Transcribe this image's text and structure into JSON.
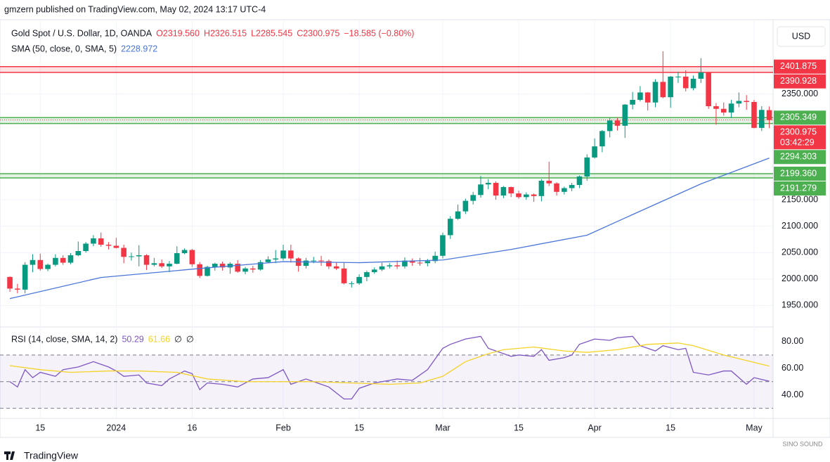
{
  "header": {
    "published": "gmzern published on TradingView.com, May 02, 2024 13:17 UTC-4",
    "symbol": "Gold Spot / U.S. Dollar, 1D, OANDA",
    "ohlc_labels": [
      "O2319.560",
      "H2326.515",
      "L2285.545",
      "C2300.975"
    ],
    "change": "−18.585 (−0.80%)",
    "currency": "USD",
    "countdown": "03:42:29",
    "footer": "TradingView",
    "watermark": "SINO SOUND"
  },
  "chart_data": [
    {
      "type": "candlestick",
      "up_color": "#089981",
      "down_color": "#f23645",
      "grid": true,
      "xlim": [
        -1.3,
        100.5
      ],
      "ylim": [
        1912,
        2488
      ],
      "xticks": [
        {
          "value": 4,
          "label": "15"
        },
        {
          "value": 14,
          "label": "2024"
        },
        {
          "value": 24,
          "label": "16"
        },
        {
          "value": 36,
          "label": "Feb"
        },
        {
          "value": 46,
          "label": "15"
        },
        {
          "value": 57,
          "label": "Mar"
        },
        {
          "value": 67,
          "label": "15"
        },
        {
          "value": 77,
          "label": "Apr"
        },
        {
          "value": 87,
          "label": "15"
        },
        {
          "value": 98,
          "label": "May"
        }
      ],
      "yticks": [
        {
          "value": 1950,
          "label": "1950.000"
        },
        {
          "value": 2000,
          "label": "2000.000"
        },
        {
          "value": 2050,
          "label": "2050.000"
        },
        {
          "value": 2100,
          "label": "2100.000"
        },
        {
          "value": 2150,
          "label": "2150.000"
        },
        {
          "value": 2350,
          "label": "2350.000"
        }
      ],
      "open": [
        2004,
        1982,
        1980,
        2027,
        2036,
        2019,
        2027,
        2040,
        2031,
        2045,
        2053,
        2067,
        2077,
        2065,
        2063,
        2059,
        2042,
        2043,
        2045,
        2027,
        2030,
        2024,
        2029,
        2049,
        2055,
        2028,
        2006,
        2023,
        2029,
        2022,
        2029,
        2014,
        2020,
        2018,
        2032,
        2037,
        2039,
        2054,
        2039,
        2025,
        2035,
        2035,
        2034,
        2024,
        2020,
        1992,
        1992,
        2004,
        2013,
        2018,
        2024,
        2026,
        2024,
        2035,
        2031,
        2030,
        2034,
        2044,
        2083,
        2114,
        2128,
        2148,
        2159,
        2179,
        2182,
        2158,
        2174,
        2162,
        2155,
        2160,
        2157,
        2186,
        2181,
        2165,
        2172,
        2178,
        2194,
        2230,
        2251,
        2280,
        2300,
        2290,
        2330,
        2339,
        2353,
        2334,
        2373,
        2344,
        2383,
        2383,
        2361,
        2379,
        2391,
        2327,
        2322,
        2315,
        2332,
        2337,
        2335,
        2286,
        2319.56
      ],
      "high": [
        2005,
        1991,
        2032,
        2047,
        2048,
        2029,
        2047,
        2045,
        2049,
        2071,
        2070,
        2083,
        2088,
        2070,
        2078,
        2065,
        2050,
        2064,
        2047,
        2040,
        2037,
        2034,
        2062,
        2058,
        2057,
        2032,
        2025,
        2031,
        2033,
        2032,
        2036,
        2023,
        2025,
        2036,
        2043,
        2055,
        2065,
        2065,
        2041,
        2040,
        2042,
        2044,
        2037,
        2032,
        2031,
        1996,
        2009,
        2016,
        2022,
        2031,
        2030,
        2035,
        2041,
        2039,
        2040,
        2038,
        2052,
        2088,
        2119,
        2141,
        2152,
        2165,
        2195,
        2189,
        2185,
        2176,
        2175,
        2167,
        2164,
        2162,
        2189,
        2222,
        2183,
        2175,
        2182,
        2196,
        2236,
        2266,
        2282,
        2305,
        2305,
        2331,
        2354,
        2365,
        2354,
        2378,
        2431,
        2384,
        2392,
        2395,
        2385,
        2418,
        2392,
        2333,
        2334,
        2339,
        2353,
        2348,
        2339,
        2327,
        2326.515
      ],
      "low": [
        1976,
        1973,
        1973,
        2013,
        2016,
        2015,
        2024,
        2027,
        2028,
        2043,
        2050,
        2062,
        2061,
        2056,
        2058,
        2030,
        2035,
        2024,
        2017,
        2024,
        2021,
        2013,
        2028,
        2047,
        2023,
        2002,
        2005,
        2016,
        2016,
        2010,
        2012,
        2009,
        2012,
        2016,
        2030,
        2030,
        2035,
        2031,
        2014,
        2020,
        2030,
        2025,
        2019,
        2017,
        1990,
        1984,
        1989,
        1996,
        2010,
        2015,
        2020,
        2019,
        2020,
        2025,
        2025,
        2024,
        2030,
        2039,
        2076,
        2112,
        2123,
        2141,
        2154,
        2170,
        2150,
        2153,
        2155,
        2152,
        2150,
        2146,
        2147,
        2176,
        2158,
        2160,
        2166,
        2172,
        2186,
        2228,
        2240,
        2268,
        2281,
        2267,
        2321,
        2336,
        2319,
        2325,
        2342,
        2324,
        2371,
        2355,
        2357,
        2371,
        2322,
        2292,
        2309,
        2305,
        2325,
        2320,
        2285,
        2280,
        2285.545
      ],
      "close": [
        1982,
        1980,
        2027,
        2036,
        2019,
        2027,
        2040,
        2031,
        2045,
        2053,
        2067,
        2077,
        2065,
        2063,
        2059,
        2042,
        2043,
        2045,
        2027,
        2030,
        2024,
        2029,
        2049,
        2055,
        2028,
        2006,
        2023,
        2029,
        2022,
        2029,
        2014,
        2020,
        2018,
        2032,
        2037,
        2039,
        2054,
        2039,
        2025,
        2035,
        2035,
        2034,
        2024,
        2020,
        1992,
        1992,
        2004,
        2013,
        2018,
        2024,
        2026,
        2024,
        2035,
        2031,
        2030,
        2034,
        2044,
        2083,
        2114,
        2128,
        2148,
        2159,
        2179,
        2182,
        2158,
        2174,
        2162,
        2155,
        2160,
        2157,
        2186,
        2181,
        2165,
        2172,
        2178,
        2194,
        2230,
        2251,
        2280,
        2300,
        2290,
        2330,
        2339,
        2353,
        2334,
        2373,
        2344,
        2383,
        2383,
        2361,
        2379,
        2391,
        2327,
        2322,
        2315,
        2332,
        2337,
        2335,
        2286,
        2320,
        2300.975
      ],
      "sma": {
        "name": "SMA (50, close, 0, SMA, 5)",
        "color": "#4a76d9",
        "x": [
          0,
          12,
          25,
          36,
          46,
          57,
          66,
          76,
          82,
          91,
          100
        ],
        "values": [
          1963,
          2003,
          2020,
          2033,
          2031,
          2036,
          2056,
          2083,
          2122,
          2180,
          2228.972
        ]
      },
      "zones": [
        {
          "color": "#f23645",
          "high": {
            "value": 2401.875,
            "label": "2401.875"
          },
          "low": {
            "value": 2390.928,
            "label": "2390.928"
          }
        },
        {
          "color": "#4caf50",
          "high": {
            "value": 2305.349,
            "label": "2305.349"
          },
          "low": {
            "value": 2294.303,
            "label": "2294.303"
          }
        },
        {
          "color": "#4caf50",
          "high": {
            "value": 2199.36,
            "label": "2199.360"
          },
          "low": {
            "value": 2191.279,
            "label": "2191.279"
          }
        }
      ]
    },
    {
      "type": "line",
      "title": "RSI (14, close, SMA, 14, 2)",
      "ylim": [
        24,
        90.5
      ],
      "yticks": [
        {
          "value": 40,
          "label": "40.00"
        },
        {
          "value": 60,
          "label": "60.00"
        },
        {
          "value": 80,
          "label": "80.00"
        }
      ],
      "bands": [
        30,
        50,
        70
      ],
      "empty_marks": [
        "∅",
        "∅"
      ],
      "series": [
        {
          "name": "RSI",
          "color": "#7e57c2",
          "x": [
            0,
            1,
            2,
            3,
            4,
            6,
            7,
            9,
            11,
            13,
            14,
            15,
            17,
            18,
            20,
            21,
            23,
            24,
            25,
            26,
            28,
            30,
            32,
            34,
            36,
            37,
            39,
            40,
            42,
            44,
            45,
            46,
            48,
            50,
            51,
            53,
            55,
            57,
            58,
            60,
            62,
            63,
            64,
            66,
            67,
            69,
            70,
            71,
            73,
            74,
            75,
            77,
            79,
            80,
            82,
            83,
            85,
            86,
            88,
            89,
            90,
            92,
            94,
            95,
            97,
            98,
            100
          ],
          "values": [
            50,
            46,
            59,
            53,
            57,
            54,
            59,
            61,
            65,
            61,
            58,
            54,
            55,
            49,
            47,
            52,
            58,
            56,
            44,
            49,
            48,
            46,
            52,
            53,
            59,
            48,
            52,
            50,
            46,
            37,
            37,
            45,
            49,
            51,
            52,
            51,
            59,
            75,
            78,
            82,
            84,
            75,
            73,
            69,
            70,
            69,
            74,
            66,
            68,
            70,
            78,
            82,
            81,
            83,
            84,
            77,
            73,
            77,
            74,
            75,
            57,
            55,
            58,
            58,
            48,
            53,
            50.29
          ]
        },
        {
          "name": "RSI SMA",
          "color": "#f5d327",
          "x": [
            0,
            4,
            8,
            13,
            17,
            22,
            26,
            31,
            36,
            40,
            45,
            50,
            54,
            57,
            60,
            63,
            65,
            69,
            73,
            76,
            80,
            84,
            88,
            90,
            94,
            100
          ],
          "values": [
            62,
            59,
            57,
            58,
            58,
            57,
            52,
            50,
            50,
            50,
            49,
            48,
            49,
            54,
            65,
            71,
            74,
            76,
            73,
            72,
            74,
            78,
            79,
            77,
            70,
            61.66
          ]
        }
      ]
    }
  ]
}
